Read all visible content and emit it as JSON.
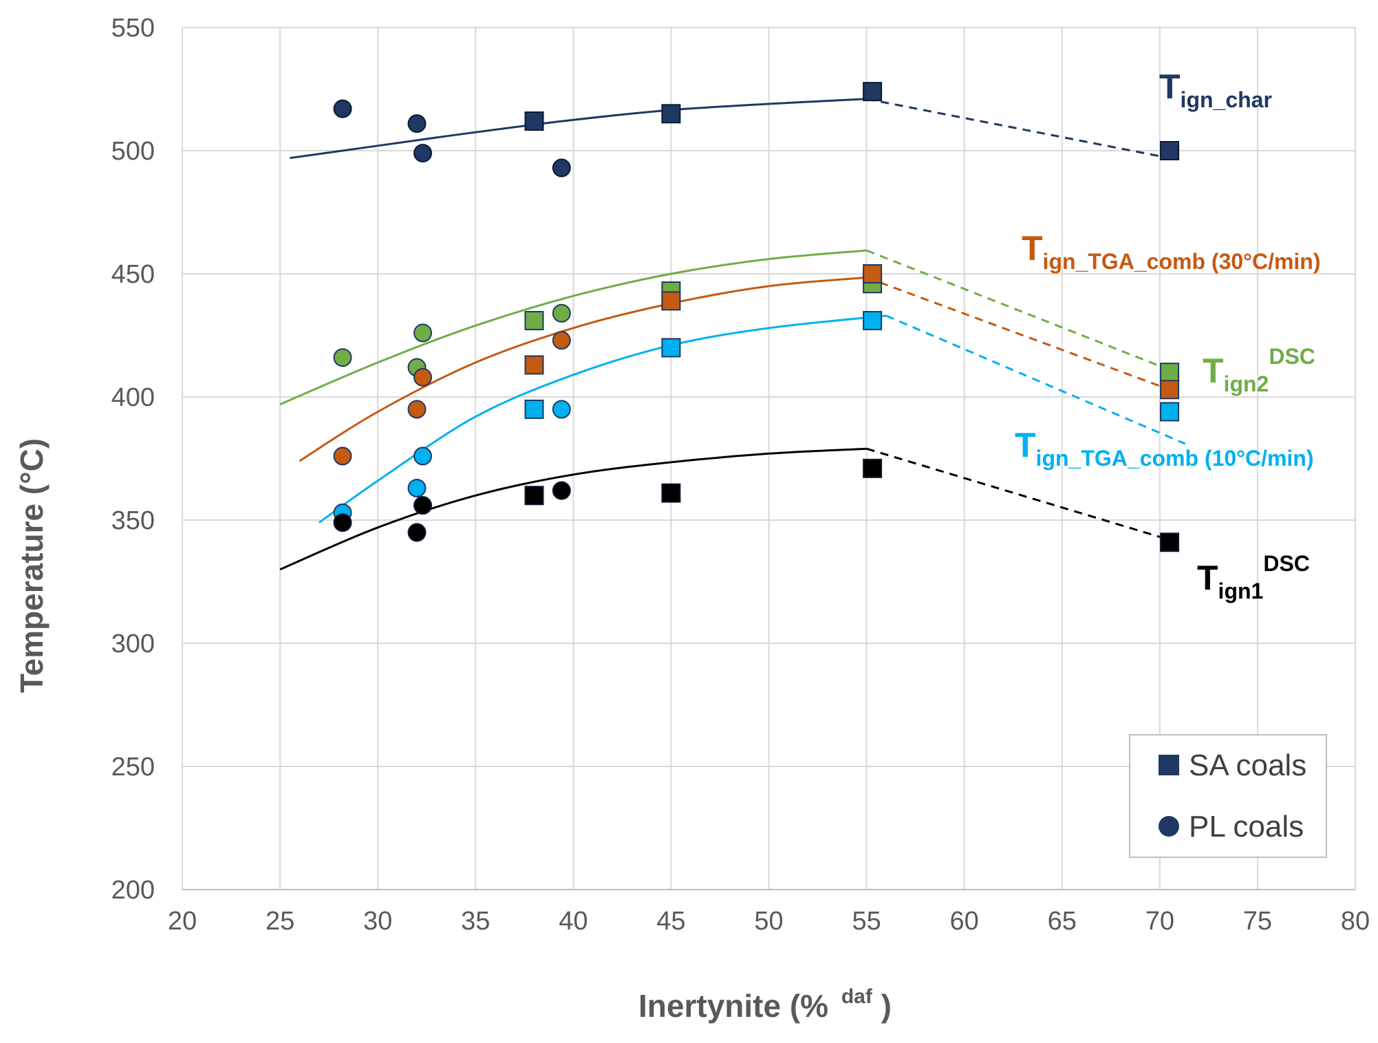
{
  "chart_data": {
    "type": "scatter",
    "title": "",
    "xlabel": "Inertynite (% daf)",
    "xlabel_main": "Inertynite (%",
    "xlabel_sup": "daf",
    "xlabel_close": ")",
    "ylabel": "Temperature  (°C)",
    "xlim": [
      20,
      80
    ],
    "ylim": [
      200,
      550
    ],
    "xticks": [
      20,
      25,
      30,
      35,
      40,
      45,
      50,
      55,
      60,
      65,
      70,
      75,
      80
    ],
    "yticks": [
      200,
      250,
      300,
      350,
      400,
      450,
      500,
      550
    ],
    "grid": true,
    "legend": {
      "position": "bottom-right",
      "entries": [
        {
          "label": "SA coals",
          "marker": "square"
        },
        {
          "label": "PL coals",
          "marker": "circle"
        }
      ]
    },
    "series": [
      {
        "name": "Tign_char",
        "color": "#1f3864",
        "sa_points": [
          [
            55.3,
            524
          ],
          [
            38,
            512
          ],
          [
            45,
            515
          ],
          [
            70.5,
            500
          ]
        ],
        "pl_points": [
          [
            28.2,
            517
          ],
          [
            32,
            511
          ],
          [
            32.3,
            499
          ],
          [
            39.4,
            493
          ]
        ],
        "trend": [
          [
            25.5,
            497
          ],
          [
            30,
            502
          ],
          [
            35,
            507.5
          ],
          [
            40,
            512.5
          ],
          [
            45,
            516.5
          ],
          [
            50,
            519
          ],
          [
            55,
            521
          ]
        ],
        "dashed": [
          [
            55,
            521
          ],
          [
            70.5,
            497
          ]
        ],
        "label": {
          "main": "T",
          "sub": "ign_char",
          "sup": ""
        }
      },
      {
        "name": "Tign2 DSC",
        "color": "#70ad47",
        "sa_points": [
          [
            38,
            431
          ],
          [
            45,
            443
          ],
          [
            55.3,
            446
          ],
          [
            70.5,
            410
          ]
        ],
        "pl_points": [
          [
            28.2,
            416
          ],
          [
            32,
            412
          ],
          [
            32.3,
            426
          ],
          [
            39.4,
            434
          ]
        ],
        "trend": [
          [
            25,
            397
          ],
          [
            30,
            414
          ],
          [
            35,
            429
          ],
          [
            40,
            441
          ],
          [
            45,
            450
          ],
          [
            50,
            456
          ],
          [
            55,
            459.5
          ]
        ],
        "dashed": [
          [
            55,
            459.5
          ],
          [
            70.5,
            411
          ]
        ],
        "label": {
          "main": "T",
          "sub": "ign2",
          "sup": "DSC"
        }
      },
      {
        "name": "Tign_TGA_comb (30°C/min)",
        "color": "#c55a11",
        "sa_points": [
          [
            38,
            413
          ],
          [
            45,
            439
          ],
          [
            55.3,
            450
          ],
          [
            70.5,
            403
          ]
        ],
        "pl_points": [
          [
            28.2,
            376
          ],
          [
            32,
            395
          ],
          [
            32.3,
            408
          ],
          [
            39.4,
            423
          ]
        ],
        "trend": [
          [
            26,
            374
          ],
          [
            30,
            394
          ],
          [
            35,
            414
          ],
          [
            40,
            428
          ],
          [
            45,
            438
          ],
          [
            50,
            445
          ],
          [
            55,
            448.5
          ]
        ],
        "dashed": [
          [
            55,
            448.5
          ],
          [
            70.5,
            403
          ]
        ],
        "label": {
          "main": "T",
          "sub": "ign_TGA_comb (30°C/min)",
          "sup": ""
        }
      },
      {
        "name": "Tign_TGA_comb (10°C/min)",
        "color": "#00b0f0",
        "sa_points": [
          [
            38,
            395
          ],
          [
            45,
            420
          ],
          [
            55.3,
            431
          ],
          [
            70.5,
            394
          ]
        ],
        "pl_points": [
          [
            28.2,
            353
          ],
          [
            32,
            363
          ],
          [
            32.3,
            376
          ],
          [
            39.4,
            395
          ]
        ],
        "trend": [
          [
            27,
            349
          ],
          [
            30,
            366
          ],
          [
            35,
            392
          ],
          [
            40,
            409
          ],
          [
            45,
            421
          ],
          [
            50,
            428
          ],
          [
            56,
            433
          ]
        ],
        "dashed": [
          [
            56,
            433
          ],
          [
            71.3,
            381
          ]
        ],
        "label": {
          "main": "T",
          "sub": "ign_TGA_comb (10°C/min)",
          "sup": ""
        }
      },
      {
        "name": "Tign1 DSC",
        "color": "#000000",
        "sa_points": [
          [
            38,
            360
          ],
          [
            45,
            361
          ],
          [
            55.3,
            371
          ],
          [
            70.5,
            341
          ]
        ],
        "pl_points": [
          [
            28.2,
            349
          ],
          [
            32,
            345
          ],
          [
            32.3,
            356
          ],
          [
            39.4,
            362
          ]
        ],
        "trend": [
          [
            25,
            330
          ],
          [
            30,
            347
          ],
          [
            35,
            360
          ],
          [
            40,
            368.5
          ],
          [
            45,
            373.5
          ],
          [
            50,
            377
          ],
          [
            55,
            379
          ]
        ],
        "dashed": [
          [
            55,
            379
          ],
          [
            70.5,
            342
          ]
        ],
        "label": {
          "main": "T",
          "sub": "ign1",
          "sup": "DSC"
        }
      }
    ]
  }
}
